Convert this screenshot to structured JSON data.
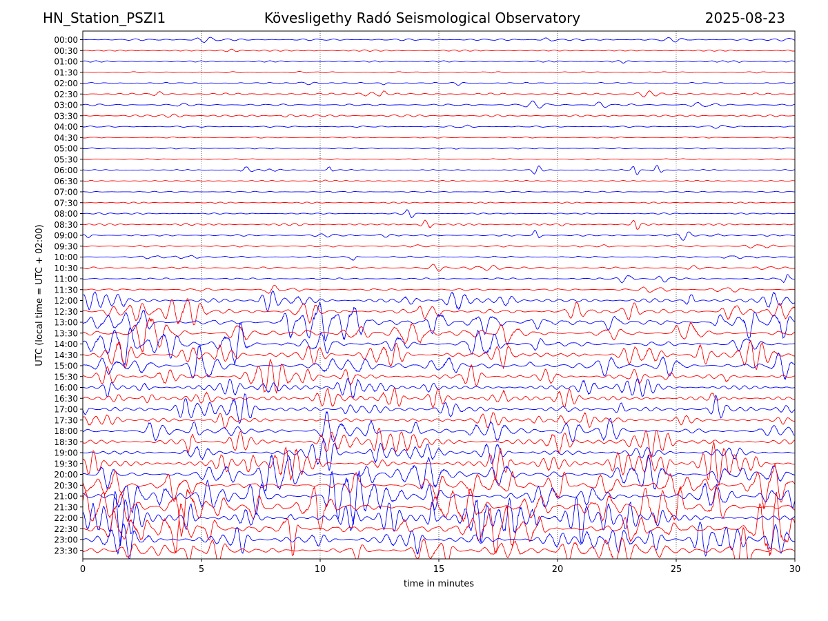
{
  "header": {
    "station": "HN_Station_PSZI1",
    "observatory": "Kövesligethy Radó Seismological Observatory",
    "date": "2025-08-23"
  },
  "chart_data": {
    "type": "line",
    "xlabel": "time in minutes",
    "ylabel": "UTC (local time = UTC + 02:00)",
    "xlim": [
      0,
      30
    ],
    "x_ticks": [
      "0",
      "5",
      "10",
      "15",
      "20",
      "25",
      "30"
    ],
    "x_gridlines": [
      5,
      10,
      15,
      20,
      25
    ],
    "grid": "vertical dotted",
    "row_labels": [
      "00:00",
      "00:30",
      "01:00",
      "01:30",
      "02:00",
      "02:30",
      "03:00",
      "03:30",
      "04:00",
      "04:30",
      "05:00",
      "05:30",
      "06:00",
      "06:30",
      "07:00",
      "07:30",
      "08:00",
      "08:30",
      "09:00",
      "09:30",
      "10:00",
      "10:30",
      "11:00",
      "11:30",
      "12:00",
      "12:30",
      "13:00",
      "13:30",
      "14:00",
      "14:30",
      "15:00",
      "15:30",
      "16:00",
      "16:30",
      "17:00",
      "17:30",
      "18:00",
      "18:30",
      "19:00",
      "19:30",
      "20:00",
      "20:30",
      "21:00",
      "21:30",
      "22:00",
      "22:30",
      "23:00",
      "23:30"
    ],
    "trace_colors": [
      "#0000ff",
      "#ff0000"
    ],
    "activity_level": [
      0.14,
      0.08,
      0.07,
      0.05,
      0.1,
      0.16,
      0.15,
      0.14,
      0.06,
      0.01,
      0.02,
      0.01,
      0.05,
      0.04,
      0.01,
      0.02,
      0.04,
      0.12,
      0.14,
      0.11,
      0.12,
      0.15,
      0.12,
      0.15,
      0.5,
      0.55,
      0.68,
      0.6,
      0.62,
      0.6,
      0.58,
      0.52,
      0.55,
      0.5,
      0.52,
      0.42,
      0.55,
      0.58,
      0.52,
      0.68,
      0.7,
      0.72,
      0.82,
      0.85,
      0.9,
      0.88,
      0.75,
      0.65
    ],
    "events": [
      {
        "row": "06:00",
        "minutes": [
          6.9,
          10.4,
          19.1,
          23.3,
          24.2
        ]
      },
      {
        "row": "08:00",
        "minutes": [
          13.8
        ]
      },
      {
        "row": "08:30",
        "minutes": [
          14.5,
          23.3
        ]
      },
      {
        "row": "09:00",
        "minutes": [
          19.1,
          25.3
        ]
      },
      {
        "row": "10:00",
        "minutes": [
          11.4
        ]
      },
      {
        "row": "11:00",
        "minutes": [
          22.9,
          29.6
        ]
      },
      {
        "row": "11:30",
        "minutes": [
          7.9
        ]
      },
      {
        "row": "12:30",
        "minutes": [
          14.3
        ]
      },
      {
        "row": "13:30",
        "minutes": [
          2.8,
          14.2
        ]
      }
    ]
  }
}
